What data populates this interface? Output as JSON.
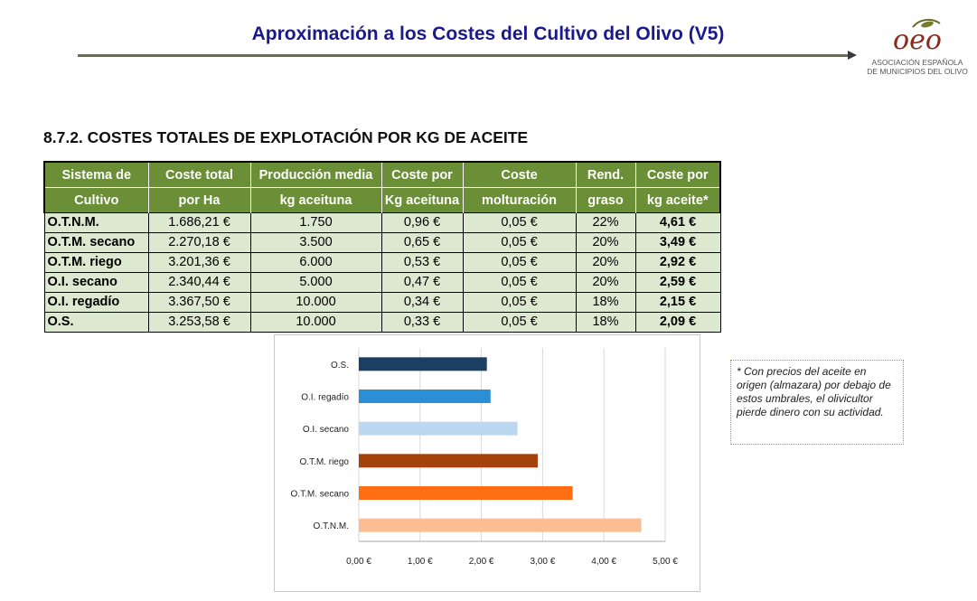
{
  "header": {
    "title": "Aproximación a los Costes del Cultivo del Olivo (V5)",
    "logo_mark": "oeo",
    "logo_line1": "ASOCIACIÓN ESPAÑOLA",
    "logo_line2": "DE MUNICIPIOS DEL OLIVO"
  },
  "section": {
    "title": "8.7.2. COSTES TOTALES DE EXPLOTACIÓN POR KG DE ACEITE"
  },
  "table": {
    "headers": [
      [
        "Sistema de",
        "Cultivo"
      ],
      [
        "Coste  total",
        "por Ha"
      ],
      [
        "Producción media",
        "kg aceituna"
      ],
      [
        "Coste por",
        "Kg aceituna"
      ],
      [
        "Coste",
        "molturación"
      ],
      [
        "Rend.",
        "graso"
      ],
      [
        "Coste por",
        "kg aceite*"
      ]
    ],
    "rows": [
      [
        "O.T.N.M.",
        "1.686,21 €",
        "1.750",
        "0,96 €",
        "0,05 €",
        "22%",
        "4,61 €"
      ],
      [
        "O.T.M. secano",
        "2.270,18 €",
        "3.500",
        "0,65 €",
        "0,05 €",
        "20%",
        "3,49 €"
      ],
      [
        "O.T.M. riego",
        "3.201,36 €",
        "6.000",
        "0,53 €",
        "0,05 €",
        "20%",
        "2,92 €"
      ],
      [
        "O.I. secano",
        "2.340,44 €",
        "5.000",
        "0,47 €",
        "0,05 €",
        "20%",
        "2,59 €"
      ],
      [
        "O.I. regadío",
        "3.367,50 €",
        "10.000",
        "0,34 €",
        "0,05 €",
        "18%",
        "2,15 €"
      ],
      [
        "O.S.",
        "3.253,58 €",
        "10.000",
        "0,33 €",
        "0,05 €",
        "18%",
        "2,09 €"
      ]
    ]
  },
  "chart_data": {
    "type": "bar",
    "orientation": "horizontal",
    "title": "",
    "xlabel": "",
    "ylabel": "",
    "categories": [
      "O.S.",
      "O.I. regadío",
      "O.I. secano",
      "O.T.M. riego",
      "O.T.M. secano",
      "O.T.N.M."
    ],
    "values": [
      2.09,
      2.15,
      2.59,
      2.92,
      3.49,
      4.61
    ],
    "colors": [
      "#1b3f63",
      "#2c8fd6",
      "#bcd7f0",
      "#a4420d",
      "#ff6e12",
      "#fbbe92"
    ],
    "xlim": [
      0,
      5
    ],
    "ticks": [
      0,
      1,
      2,
      3,
      4,
      5
    ],
    "tick_labels": [
      "0,00 €",
      "1,00 €",
      "2,00 €",
      "3,00 €",
      "4,00 €",
      "5,00 €"
    ],
    "grid": true,
    "legend": "none"
  },
  "note": {
    "text": "* Con precios del aceite en origen (almazara) por debajo de estos umbrales, el olivicultor pierde dinero con su actividad."
  },
  "colors": {
    "title": "#1a1a8c",
    "header_bg": "#6b8f36",
    "row_bg": "#dde8d0"
  }
}
